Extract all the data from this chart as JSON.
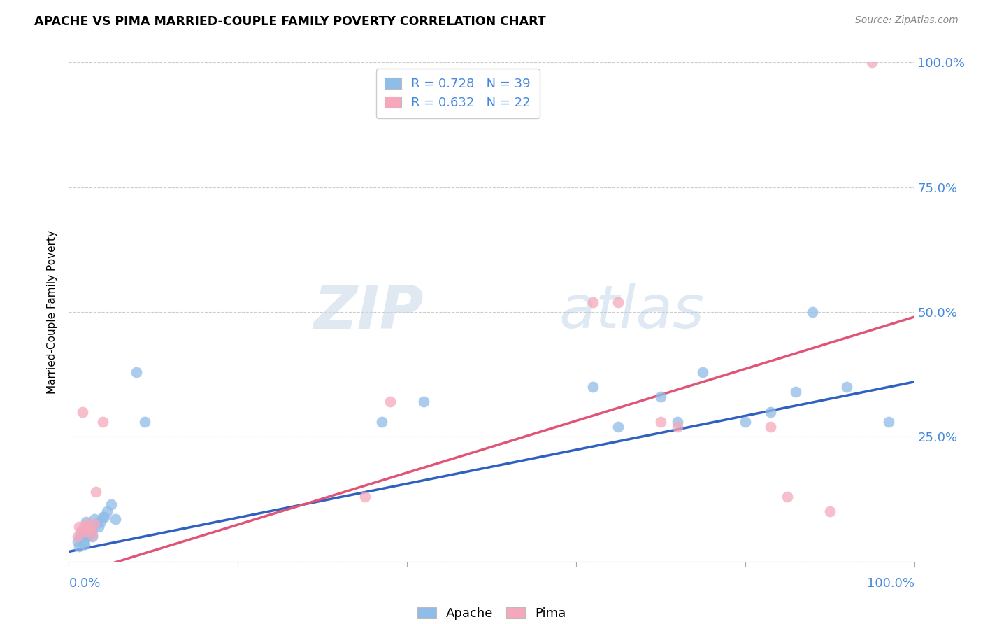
{
  "title": "APACHE VS PIMA MARRIED-COUPLE FAMILY POVERTY CORRELATION CHART",
  "source": "Source: ZipAtlas.com",
  "ylabel": "Married-Couple Family Poverty",
  "xlim": [
    0,
    1
  ],
  "ylim": [
    0,
    1
  ],
  "ytick_vals": [
    0.0,
    0.25,
    0.5,
    0.75,
    1.0
  ],
  "ytick_labels": [
    "",
    "25.0%",
    "50.0%",
    "75.0%",
    "100.0%"
  ],
  "grid_color": "#cccccc",
  "bg_color": "#ffffff",
  "apache_scatter_color": "#90bce8",
  "pima_scatter_color": "#f5a8bb",
  "apache_line_color": "#3060c0",
  "pima_line_color": "#e05575",
  "tick_label_color": "#4488dd",
  "apache_R": "0.728",
  "apache_N": "39",
  "pima_R": "0.632",
  "pima_N": "22",
  "watermark_zip": "ZIP",
  "watermark_atlas": "atlas",
  "apache_points_x": [
    0.01,
    0.012,
    0.013,
    0.015,
    0.017,
    0.018,
    0.019,
    0.02,
    0.021,
    0.022,
    0.024,
    0.025,
    0.026,
    0.027,
    0.028,
    0.03,
    0.032,
    0.035,
    0.038,
    0.04,
    0.042,
    0.045,
    0.05,
    0.055,
    0.08,
    0.09,
    0.37,
    0.42,
    0.62,
    0.65,
    0.7,
    0.72,
    0.75,
    0.8,
    0.83,
    0.86,
    0.88,
    0.92,
    0.97
  ],
  "apache_points_y": [
    0.04,
    0.03,
    0.05,
    0.06,
    0.055,
    0.04,
    0.035,
    0.08,
    0.05,
    0.06,
    0.055,
    0.07,
    0.065,
    0.06,
    0.05,
    0.085,
    0.075,
    0.07,
    0.08,
    0.09,
    0.09,
    0.1,
    0.115,
    0.085,
    0.38,
    0.28,
    0.28,
    0.32,
    0.35,
    0.27,
    0.33,
    0.28,
    0.38,
    0.28,
    0.3,
    0.34,
    0.5,
    0.35,
    0.28
  ],
  "pima_points_x": [
    0.01,
    0.012,
    0.014,
    0.016,
    0.018,
    0.02,
    0.022,
    0.025,
    0.028,
    0.03,
    0.032,
    0.04,
    0.35,
    0.38,
    0.62,
    0.65,
    0.7,
    0.72,
    0.83,
    0.85,
    0.9,
    0.95
  ],
  "pima_points_y": [
    0.05,
    0.07,
    0.06,
    0.3,
    0.07,
    0.06,
    0.075,
    0.065,
    0.055,
    0.075,
    0.14,
    0.28,
    0.13,
    0.32,
    0.52,
    0.52,
    0.28,
    0.27,
    0.27,
    0.13,
    0.1,
    1.0
  ]
}
